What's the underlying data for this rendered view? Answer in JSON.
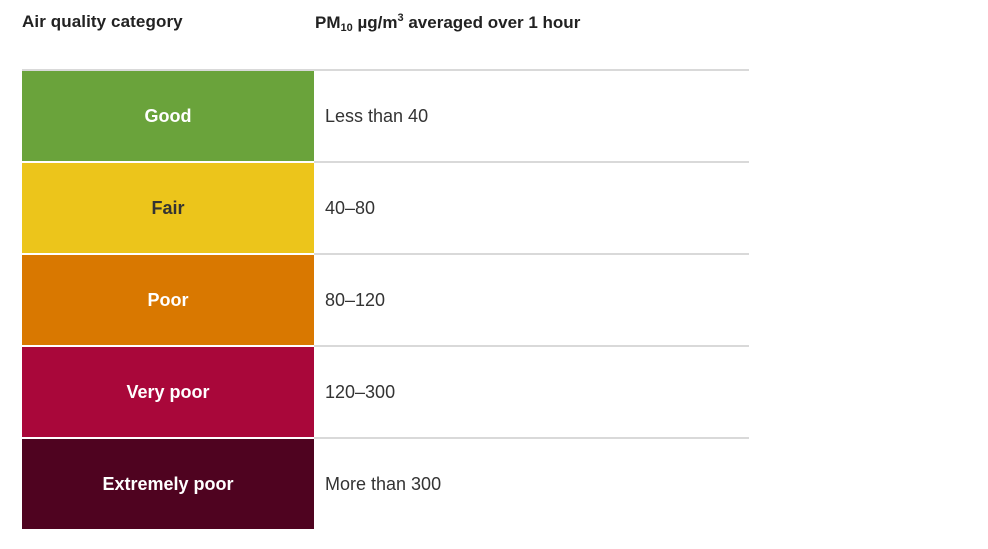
{
  "header": {
    "category_label": "Air quality category",
    "pm_prefix": "PM",
    "pm_sub": "10",
    "pm_unit": " µg/m",
    "pm_sup": "3",
    "pm_suffix": " averaged over 1 hour"
  },
  "rows": [
    {
      "category": "Good",
      "value": "Less than 40",
      "bg": "#6aa33b",
      "fg": "#ffffff"
    },
    {
      "category": "Fair",
      "value": "40–80",
      "bg": "#ecc51b",
      "fg": "#333333"
    },
    {
      "category": "Poor",
      "value": "80–120",
      "bg": "#d97800",
      "fg": "#ffffff"
    },
    {
      "category": "Very poor",
      "value": "120–300",
      "bg": "#a9073a",
      "fg": "#ffffff"
    },
    {
      "category": "Extremely poor",
      "value": "More than 300",
      "bg": "#4f0320",
      "fg": "#ffffff"
    }
  ]
}
